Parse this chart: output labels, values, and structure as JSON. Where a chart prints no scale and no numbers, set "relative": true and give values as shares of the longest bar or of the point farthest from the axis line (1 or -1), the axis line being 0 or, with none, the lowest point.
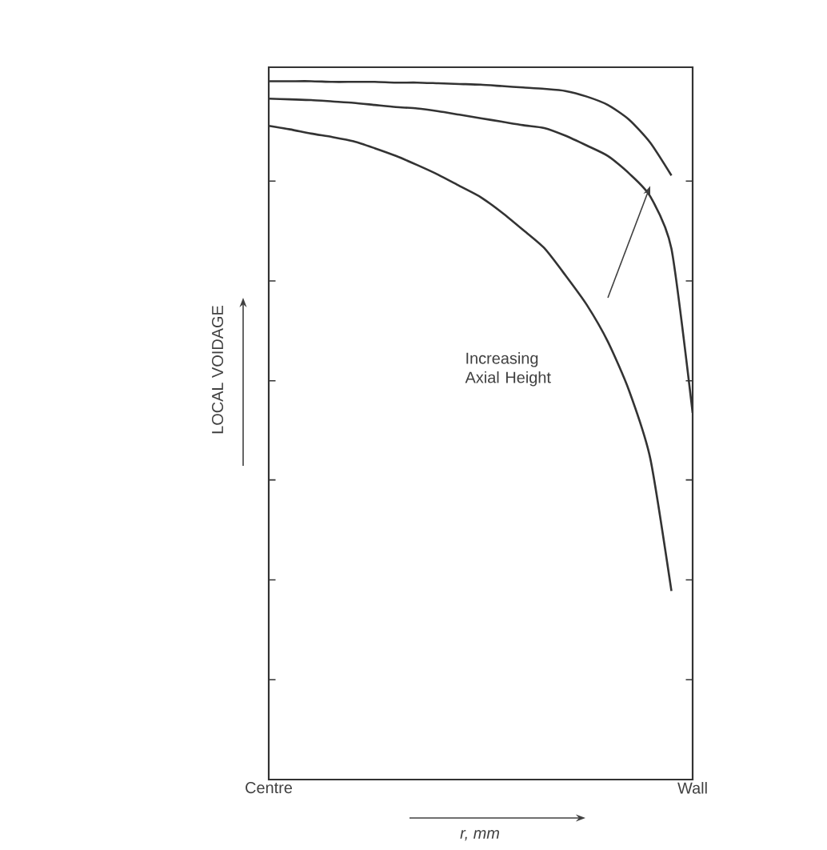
{
  "chart_data": {
    "type": "line",
    "relative": true,
    "xlabel": "r, mm",
    "ylabel": "LOCAL VOIDAGE",
    "categories": [
      "Centre",
      null,
      null,
      null,
      null,
      null,
      null,
      null,
      null,
      null,
      null,
      null,
      null,
      null,
      null,
      null,
      null,
      null,
      null,
      null,
      "Wall"
    ],
    "tick_labels": "x",
    "grid": false,
    "marker": "none",
    "line_style": "solid",
    "annotations": [
      "Increasing Axial Height"
    ],
    "series": [
      {
        "color": "#333333",
        "values": [
          1.0,
          1.0,
          1.0,
          0.999,
          0.999,
          0.999,
          0.998,
          0.998,
          0.997,
          0.996,
          0.995,
          0.993,
          0.991,
          0.989,
          0.986,
          0.978,
          0.966,
          0.945,
          0.912,
          0.865,
          null
        ]
      },
      {
        "color": "#333333",
        "values": [
          0.975,
          0.974,
          0.973,
          0.971,
          0.969,
          0.966,
          0.963,
          0.961,
          0.957,
          0.952,
          0.947,
          0.942,
          0.937,
          0.933,
          0.922,
          0.908,
          0.893,
          0.868,
          0.835,
          0.76,
          0.525
        ]
      },
      {
        "color": "#333333",
        "values": [
          0.936,
          0.931,
          0.925,
          0.92,
          0.914,
          0.904,
          0.893,
          0.88,
          0.866,
          0.85,
          0.834,
          0.812,
          0.787,
          0.761,
          0.722,
          0.68,
          0.627,
          0.557,
          0.46,
          0.27,
          null
        ]
      }
    ]
  }
}
